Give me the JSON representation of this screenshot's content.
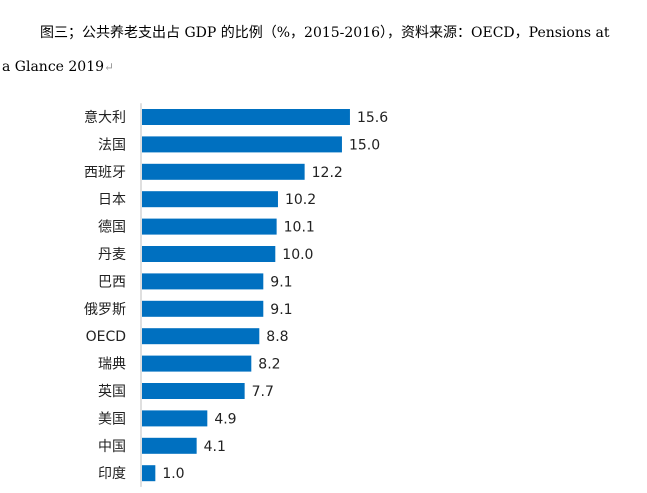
{
  "caption": {
    "line1": "图三；公共养老支出占 GDP 的比例（%，2015-2016），资料来源：OECD，Pensions at",
    "line2": "a Glance 2019",
    "paragraph_mark": "↵"
  },
  "chart_data": {
    "type": "bar",
    "orientation": "horizontal",
    "categories": [
      "意大利",
      "法国",
      "西班牙",
      "日本",
      "德国",
      "丹麦",
      "巴西",
      "俄罗斯",
      "OECD",
      "瑞典",
      "英国",
      "美国",
      "中国",
      "印度"
    ],
    "values": [
      15.6,
      15.0,
      12.2,
      10.2,
      10.1,
      10.0,
      9.1,
      9.1,
      8.8,
      8.2,
      7.7,
      4.9,
      4.1,
      1.0
    ],
    "value_labels": [
      "15.6",
      "15.0",
      "12.2",
      "10.2",
      "10.1",
      "10.0",
      "9.1",
      "9.1",
      "8.8",
      "8.2",
      "7.7",
      "4.9",
      "4.1",
      "1.0"
    ],
    "xlim": [
      0,
      16
    ],
    "grid": false,
    "legend": "none",
    "bar_color": "#0070C0",
    "axis_color": "#bfbfbf"
  }
}
